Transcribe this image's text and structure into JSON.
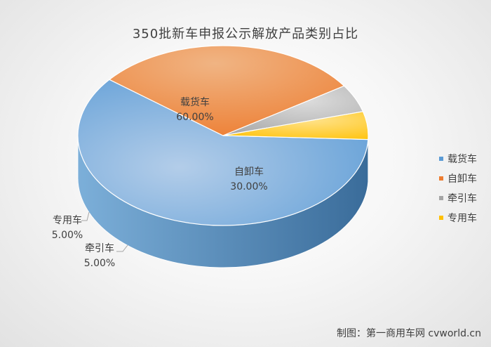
{
  "chart_data": {
    "type": "pie",
    "title": "350批新车申报公示解放产品类别占比",
    "categories": [
      "载货车",
      "自卸车",
      "牵引车",
      "专用车"
    ],
    "values": [
      60.0,
      30.0,
      5.0,
      5.0
    ],
    "value_labels": [
      "60.00%",
      "30.00%",
      "5.00%",
      "5.00%"
    ],
    "colors": [
      "#5b9bd5",
      "#ed7d31",
      "#a5a5a5",
      "#ffc000"
    ],
    "legend_position": "right"
  },
  "credit": "制图：第一商用车网 cvworld.cn"
}
